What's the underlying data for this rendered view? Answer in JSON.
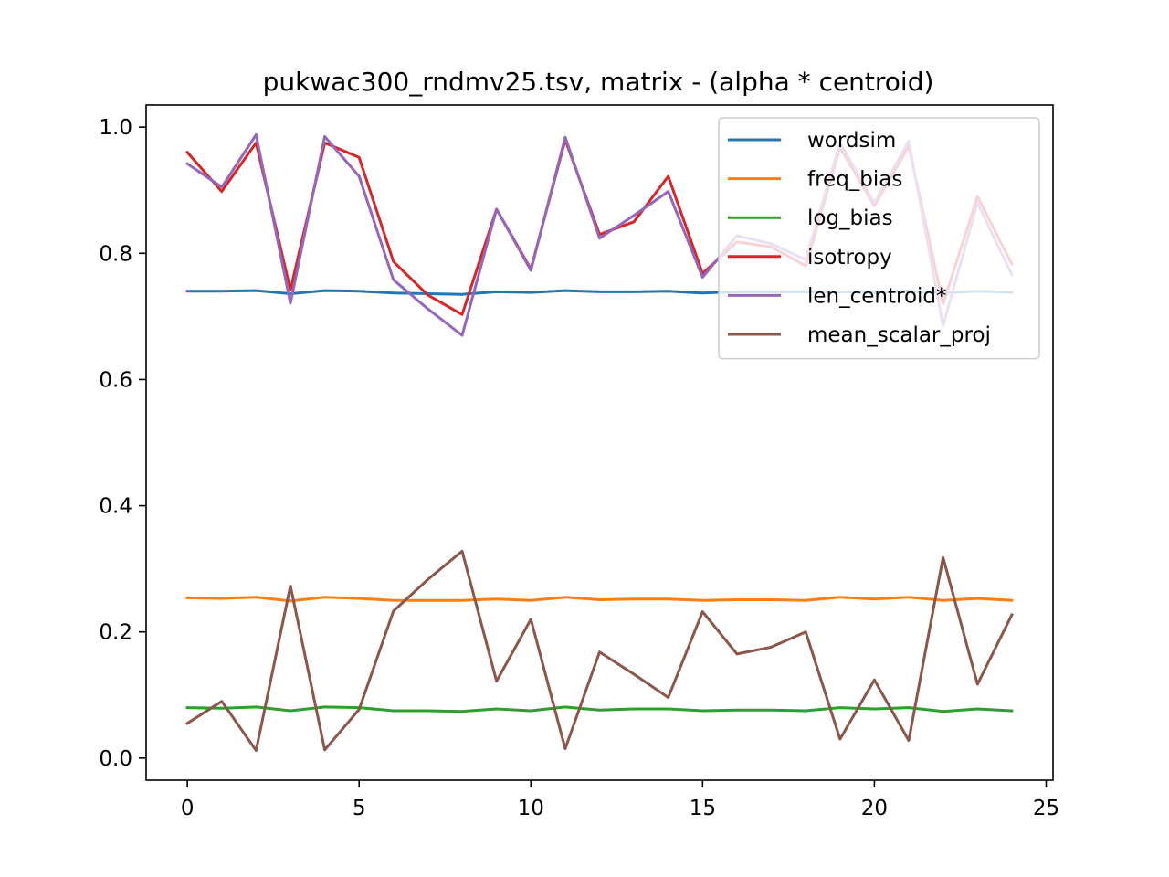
{
  "chart_data": {
    "type": "line",
    "title": "pukwac300_rndmv25.tsv, matrix - (alpha * centroid)",
    "xlabel": "",
    "ylabel": "",
    "xlim": [
      -1.2,
      25.2
    ],
    "ylim": [
      -0.035,
      1.035
    ],
    "xticks": [
      0,
      5,
      10,
      15,
      20,
      25
    ],
    "xtick_labels": [
      "0",
      "5",
      "10",
      "15",
      "20",
      "25"
    ],
    "yticks": [
      0.0,
      0.2,
      0.4,
      0.6,
      0.8,
      1.0
    ],
    "ytick_labels": [
      "0.0",
      "0.2",
      "0.4",
      "0.6",
      "0.8",
      "1.0"
    ],
    "grid": false,
    "legend_position": "upper right",
    "x": [
      0,
      1,
      2,
      3,
      4,
      5,
      6,
      7,
      8,
      9,
      10,
      11,
      12,
      13,
      14,
      15,
      16,
      17,
      18,
      19,
      20,
      21,
      22,
      23,
      24
    ],
    "series": [
      {
        "name": "wordsim",
        "color": "#1f77b4",
        "values": [
          0.74,
          0.74,
          0.741,
          0.736,
          0.741,
          0.74,
          0.737,
          0.736,
          0.735,
          0.739,
          0.738,
          0.741,
          0.739,
          0.739,
          0.74,
          0.737,
          0.739,
          0.739,
          0.739,
          0.739,
          0.738,
          0.74,
          0.737,
          0.74,
          0.738
        ]
      },
      {
        "name": "freq_bias",
        "color": "#ff7f0e",
        "values": [
          0.254,
          0.253,
          0.255,
          0.249,
          0.255,
          0.253,
          0.25,
          0.25,
          0.25,
          0.252,
          0.25,
          0.255,
          0.251,
          0.252,
          0.252,
          0.25,
          0.251,
          0.251,
          0.25,
          0.255,
          0.252,
          0.255,
          0.25,
          0.253,
          0.25
        ]
      },
      {
        "name": "log_bias",
        "color": "#2ca02c",
        "values": [
          0.08,
          0.079,
          0.081,
          0.075,
          0.081,
          0.08,
          0.075,
          0.075,
          0.074,
          0.078,
          0.075,
          0.081,
          0.076,
          0.078,
          0.078,
          0.075,
          0.076,
          0.076,
          0.075,
          0.08,
          0.078,
          0.08,
          0.074,
          0.078,
          0.075
        ]
      },
      {
        "name": "isotropy",
        "color": "#d62728",
        "values": [
          0.96,
          0.898,
          0.975,
          0.742,
          0.975,
          0.952,
          0.787,
          0.734,
          0.703,
          0.87,
          0.775,
          0.98,
          0.83,
          0.85,
          0.922,
          0.768,
          0.818,
          0.81,
          0.78,
          0.968,
          0.875,
          0.97,
          0.72,
          0.89,
          0.783
        ]
      },
      {
        "name": "len_centroid*",
        "color": "#9467bd",
        "values": [
          0.942,
          0.905,
          0.988,
          0.721,
          0.985,
          0.922,
          0.758,
          0.712,
          0.67,
          0.87,
          0.773,
          0.984,
          0.824,
          0.86,
          0.898,
          0.762,
          0.828,
          0.815,
          0.79,
          0.975,
          0.88,
          0.978,
          0.685,
          0.88,
          0.766
        ]
      },
      {
        "name": "mean_scalar_proj",
        "color": "#8c564b",
        "values": [
          0.055,
          0.09,
          0.012,
          0.273,
          0.013,
          0.077,
          0.233,
          0.283,
          0.328,
          0.122,
          0.22,
          0.015,
          0.168,
          0.133,
          0.096,
          0.232,
          0.165,
          0.176,
          0.2,
          0.03,
          0.124,
          0.028,
          0.318,
          0.117,
          0.227
        ]
      }
    ]
  }
}
